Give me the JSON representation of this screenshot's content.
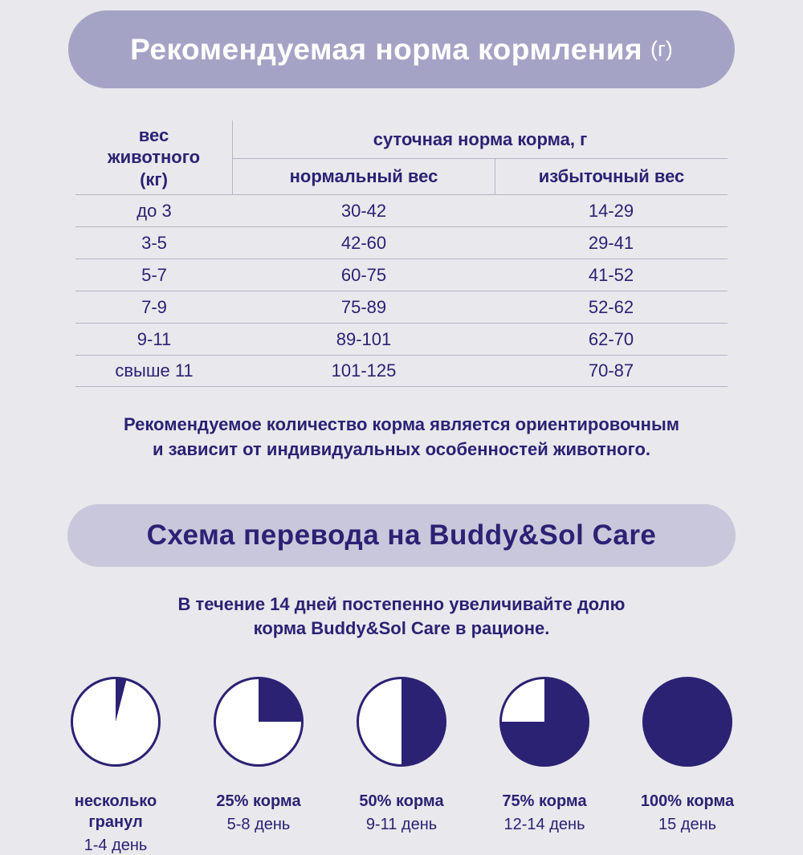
{
  "colors": {
    "background": "#e9e8ec",
    "banner_primary": "#a5a3c5",
    "banner_secondary": "#c9c7db",
    "navy": "#2b2274",
    "white": "#ffffff",
    "table_line": "#b5b4c6"
  },
  "feeding": {
    "title": "Рекомендуемая норма кормления",
    "title_unit": "(г)"
  },
  "table": {
    "col1_header": "вес животного (кг)",
    "group_header": "суточная норма корма, г",
    "sub_headers": [
      "нормальный вес",
      "избыточный вес"
    ],
    "rows": [
      {
        "weight": "до 3",
        "normal": "30-42",
        "excess": "14-29"
      },
      {
        "weight": "3-5",
        "normal": "42-60",
        "excess": "29-41"
      },
      {
        "weight": "5-7",
        "normal": "60-75",
        "excess": "41-52"
      },
      {
        "weight": "7-9",
        "normal": "75-89",
        "excess": "52-62"
      },
      {
        "weight": "9-11",
        "normal": "89-101",
        "excess": "62-70"
      },
      {
        "weight": "свыше 11",
        "normal": "101-125",
        "excess": "70-87"
      }
    ]
  },
  "note": {
    "line1": "Рекомендуемое количество корма является ориентировочным",
    "line2": "и зависит от индивидуальных особенностей животного."
  },
  "transition": {
    "title": "Схема перевода на Buddy&Sol Care",
    "subtitle_line1": "В течение 14 дней постепенно увеличивайте долю",
    "subtitle_line2": "корма Buddy&Sol Care в рационе.",
    "steps": [
      {
        "fill_percent": 4,
        "label": "несколько гранул",
        "days": "1-4 день"
      },
      {
        "fill_percent": 25,
        "label": "25% корма",
        "days": "5-8 день"
      },
      {
        "fill_percent": 50,
        "label": "50% корма",
        "days": "9-11 день"
      },
      {
        "fill_percent": 75,
        "label": "75% корма",
        "days": "12-14 день"
      },
      {
        "fill_percent": 100,
        "label": "100% корма",
        "days": "15 день"
      }
    ]
  }
}
